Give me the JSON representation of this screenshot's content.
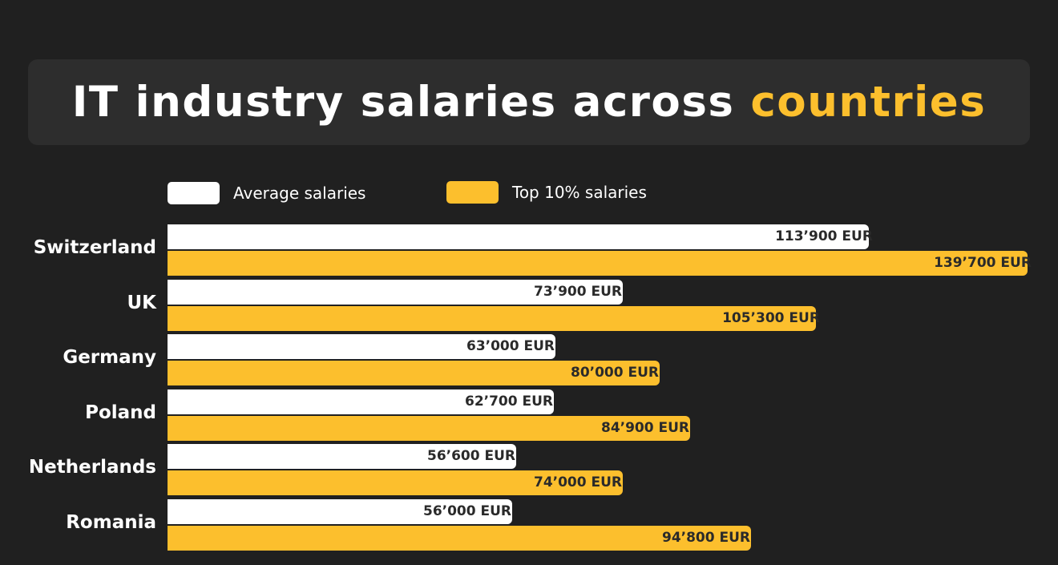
{
  "header": {
    "title_prefix": "IT industry salaries across ",
    "title_accent": "countries"
  },
  "colors": {
    "background": "#202020",
    "title_box": "#2d2d2d",
    "average": "#ffffff",
    "top10": "#fcbf2d"
  },
  "legend": {
    "average_label": "Average salaries",
    "top_label": "Top 10% salaries"
  },
  "chart_data": {
    "type": "bar",
    "orientation": "horizontal",
    "title": "IT industry salaries across countries",
    "categories": [
      "Switzerland",
      "UK",
      "Germany",
      "Poland",
      "Netherlands",
      "Romania"
    ],
    "series": [
      {
        "name": "Average salaries",
        "values": [
          113900,
          73900,
          63000,
          62700,
          56600,
          56000
        ],
        "labels": [
          "113’900 EUR",
          "73’900 EUR",
          "63’000 EUR",
          "62’700 EUR",
          "56’600 EUR",
          "56’000 EUR"
        ]
      },
      {
        "name": "Top 10% salaries",
        "values": [
          139700,
          105300,
          80000,
          84900,
          74000,
          94800
        ],
        "labels": [
          "139’700 EUR",
          "105’300 EUR",
          "80’000 EUR",
          "84’900 EUR",
          "74’000 EUR",
          "94’800 EUR"
        ]
      }
    ],
    "unit": "EUR",
    "xlim": [
      0,
      139700
    ],
    "grid": false,
    "legend_position": "top"
  }
}
